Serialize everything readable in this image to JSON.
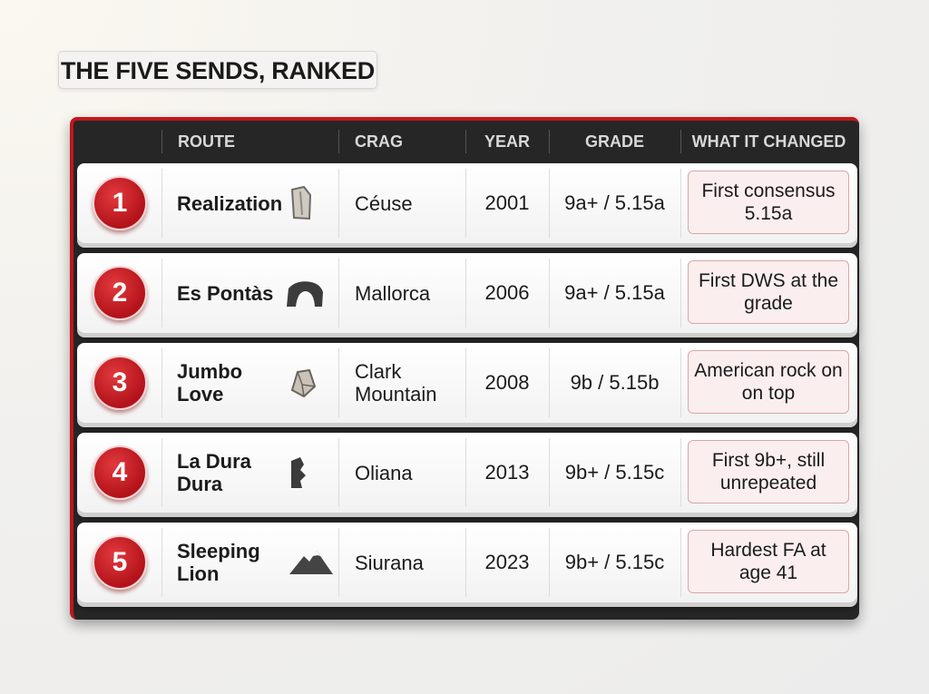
{
  "header": {
    "title": "THE FIVE SENDS, RANKED"
  },
  "table": {
    "columns": [
      "ROUTE",
      "CRAG",
      "YEAR",
      "GRADE",
      "WHAT IT CHANGED"
    ],
    "rows": [
      {
        "rank": 1,
        "route": "Realization",
        "crag": "Céuse",
        "year": 2001,
        "grade": "9a+ / 5.15a",
        "change": "First consensus 5.15a"
      },
      {
        "rank": 2,
        "route": "Es Pontàs",
        "crag": "Mallorca",
        "year": 2006,
        "grade": "9a+ / 5.15a",
        "change": "First DWS at the grade"
      },
      {
        "rank": 3,
        "route": "Jumbo Love",
        "crag": "Clark Mountain",
        "year": 2008,
        "grade": "9b / 5.15b",
        "change": "American rock on on top"
      },
      {
        "rank": 4,
        "route": "La Dura Dura",
        "crag": "Oliana",
        "year": 2013,
        "grade": "9b+ / 5.15c",
        "change": "First 9b+, still unrepeated"
      },
      {
        "rank": 5,
        "route": "Sleeping Lion",
        "crag": "Siurana",
        "year": 2023,
        "grade": "9b+ / 5.15c",
        "change": "Hardest FA at age 41"
      }
    ]
  }
}
